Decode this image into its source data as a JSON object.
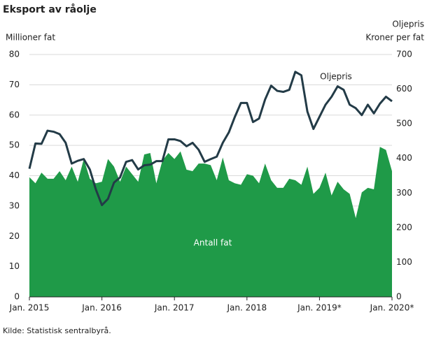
{
  "chart_data": {
    "type": "combo",
    "title": "Eksport av råolje",
    "ylabel": "Millioner fat",
    "y2label": [
      "Oljepris",
      "Kroner per fat"
    ],
    "source": "Kilde: Statistisk sentralbyrå.",
    "categories": [
      "Jan. 2015",
      null,
      null,
      null,
      null,
      null,
      null,
      null,
      null,
      null,
      null,
      null,
      "Jan. 2016",
      null,
      null,
      null,
      null,
      null,
      null,
      null,
      null,
      null,
      null,
      null,
      "Jan. 2017",
      null,
      null,
      null,
      null,
      null,
      null,
      null,
      null,
      null,
      null,
      null,
      "Jan. 2018",
      null,
      null,
      null,
      null,
      null,
      null,
      null,
      null,
      null,
      null,
      null,
      "Jan. 2019*",
      null,
      null,
      null,
      null,
      null,
      null,
      null,
      null,
      null,
      null,
      null,
      "Jan. 2020*"
    ],
    "series": [
      {
        "name": "Antall fat",
        "type": "area",
        "color": "#1f9a48",
        "values": [
          39.5,
          37.5,
          41,
          39,
          39,
          41.5,
          38.5,
          43,
          38,
          45.5,
          39,
          37.5,
          38,
          45.5,
          43,
          38,
          43,
          40.5,
          38,
          47,
          47.5,
          37.5,
          45,
          47.5,
          45.5,
          48,
          42,
          41.5,
          44,
          44,
          43.5,
          38.5,
          46,
          38.5,
          37.5,
          37,
          40.5,
          40,
          37.5,
          44,
          38.5,
          36,
          36,
          39,
          38.5,
          37,
          43,
          34,
          36,
          41,
          33.5,
          38,
          35.5,
          34,
          26,
          34.5,
          36,
          35.5,
          49.5,
          48.5,
          41.5
        ]
      },
      {
        "name": "Oljepris",
        "type": "line",
        "axis": "y2",
        "color": "#233b47",
        "values": [
          370,
          443,
          442,
          480,
          477,
          470,
          445,
          385,
          393,
          398,
          368,
          310,
          265,
          283,
          330,
          345,
          390,
          395,
          368,
          380,
          382,
          392,
          392,
          455,
          455,
          450,
          435,
          445,
          425,
          390,
          398,
          405,
          445,
          475,
          520,
          560,
          560,
          505,
          515,
          570,
          610,
          595,
          592,
          598,
          650,
          640,
          535,
          485,
          520,
          555,
          578,
          608,
          598,
          555,
          545,
          525,
          555,
          530,
          558,
          578,
          565
        ]
      }
    ],
    "ylim": [
      0,
      80
    ],
    "yticks": [
      0,
      10,
      20,
      30,
      40,
      50,
      60,
      70,
      80
    ],
    "y2lim": [
      0,
      700
    ],
    "y2ticks": [
      0,
      100,
      200,
      300,
      400,
      500,
      600,
      700
    ],
    "grid": true
  }
}
